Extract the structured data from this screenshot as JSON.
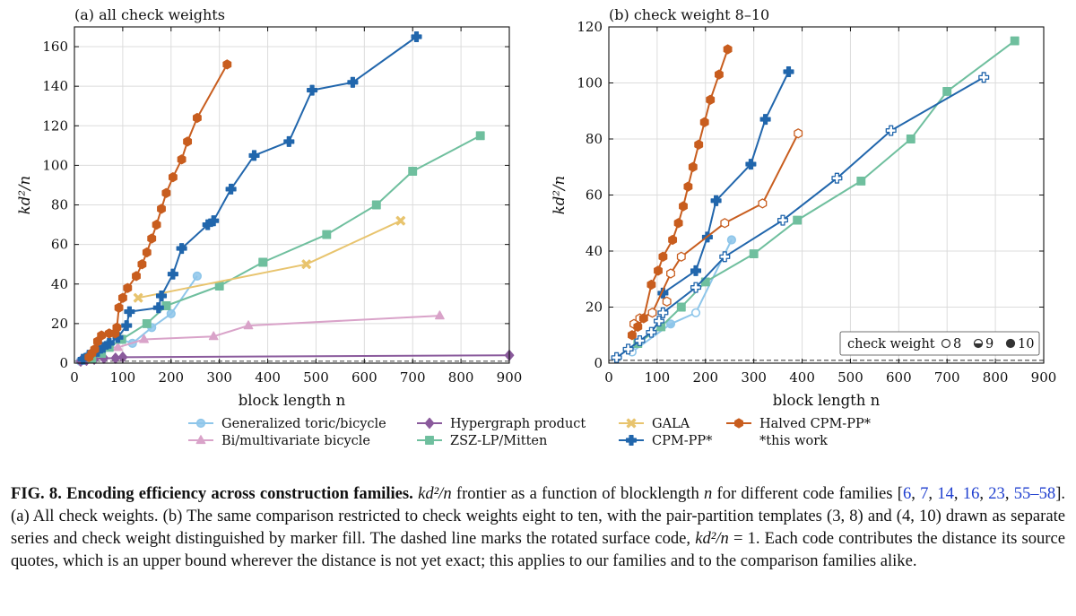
{
  "chart_data": [
    {
      "type": "line",
      "title": "(a) all check weights",
      "xlabel": "block length n",
      "ylabel": "kd²/n",
      "xlim": [
        0,
        900
      ],
      "ylim": [
        0,
        170
      ],
      "xticks": [
        0,
        100,
        200,
        300,
        400,
        500,
        600,
        700,
        800,
        900
      ],
      "yticks": [
        0,
        20,
        40,
        60,
        80,
        100,
        120,
        140,
        160
      ],
      "grid": true,
      "reference_line": {
        "y": 1,
        "style": "dashed"
      },
      "series": [
        {
          "name": "Generalized toric/bicycle",
          "color": "#8ec6ea",
          "marker": "circle",
          "points": [
            [
              12,
              1
            ],
            [
              18,
              2
            ],
            [
              24,
              3
            ],
            [
              30,
              4
            ],
            [
              36,
              5
            ],
            [
              48,
              6
            ],
            [
              60,
              8
            ],
            [
              72,
              10
            ],
            [
              96,
              12
            ],
            [
              120,
              10
            ],
            [
              160,
              18
            ],
            [
              200,
              25
            ],
            [
              254,
              44
            ]
          ]
        },
        {
          "name": "Bi/multivariate bicycle",
          "color": "#d9a3c9",
          "marker": "triangle",
          "points": [
            [
              72,
              8
            ],
            [
              90,
              8
            ],
            [
              144,
              12
            ],
            [
              288,
              13.5
            ],
            [
              360,
              19
            ],
            [
              756,
              24
            ]
          ]
        },
        {
          "name": "Hypergraph product",
          "color": "#8a5a9c",
          "marker": "diamond",
          "points": [
            [
              13,
              1
            ],
            [
              25,
              1.5
            ],
            [
              41,
              2
            ],
            [
              61,
              2.5
            ],
            [
              85,
              2.5
            ],
            [
              100,
              3
            ],
            [
              900,
              4
            ]
          ]
        },
        {
          "name": "ZSZ-LP/Mitten",
          "color": "#6fbf9e",
          "marker": "square",
          "points": [
            [
              36,
              2.5
            ],
            [
              56,
              5
            ],
            [
              72,
              8
            ],
            [
              98,
              12
            ],
            [
              150,
              20
            ],
            [
              190,
              29
            ],
            [
              300,
              39
            ],
            [
              390,
              51
            ],
            [
              522,
              65
            ],
            [
              625,
              80
            ],
            [
              700,
              97
            ],
            [
              840,
              115
            ]
          ]
        },
        {
          "name": "GALA",
          "color": "#e8c46e",
          "marker": "x",
          "points": [
            [
              132,
              33
            ],
            [
              480,
              50
            ],
            [
              675,
              72
            ]
          ]
        },
        {
          "name": "CPM-PP*",
          "color": "#2166ac",
          "marker": "plus",
          "points": [
            [
              18,
              2
            ],
            [
              30,
              4
            ],
            [
              48,
              6
            ],
            [
              60,
              8
            ],
            [
              72,
              10
            ],
            [
              90,
              13
            ],
            [
              108,
              19
            ],
            [
              114,
              26
            ],
            [
              174,
              28
            ],
            [
              180,
              34
            ],
            [
              204,
              45
            ],
            [
              222,
              58
            ],
            [
              276,
              70
            ],
            [
              288,
              72
            ],
            [
              324,
              88
            ],
            [
              372,
              105
            ],
            [
              444,
              112
            ],
            [
              492,
              138
            ],
            [
              576,
              142
            ],
            [
              708,
              165
            ]
          ]
        },
        {
          "name": "Halved CPM-PP*",
          "color": "#c85d1e",
          "marker": "hexagon",
          "points": [
            [
              30,
              3
            ],
            [
              36,
              5
            ],
            [
              42,
              7
            ],
            [
              48,
              11
            ],
            [
              56,
              14
            ],
            [
              72,
              15
            ],
            [
              84,
              15
            ],
            [
              88,
              18
            ],
            [
              92,
              28
            ],
            [
              100,
              33
            ],
            [
              110,
              38
            ],
            [
              128,
              44
            ],
            [
              140,
              50
            ],
            [
              150,
              56
            ],
            [
              160,
              63
            ],
            [
              170,
              70
            ],
            [
              180,
              78
            ],
            [
              190,
              86
            ],
            [
              204,
              94
            ],
            [
              222,
              103
            ],
            [
              234,
              112
            ],
            [
              254,
              124
            ],
            [
              316,
              151
            ]
          ]
        }
      ]
    },
    {
      "type": "line",
      "title": "(b) check weight 8–10",
      "xlabel": "block length n",
      "ylabel": "kd²/n",
      "xlim": [
        0,
        900
      ],
      "ylim": [
        0,
        120
      ],
      "xticks": [
        0,
        100,
        200,
        300,
        400,
        500,
        600,
        700,
        800,
        900
      ],
      "yticks": [
        0,
        20,
        40,
        60,
        80,
        100,
        120
      ],
      "grid": true,
      "reference_line": {
        "y": 1,
        "style": "dashed"
      },
      "fill_legend": {
        "label": "check weight",
        "items": [
          "8",
          "9",
          "10"
        ]
      },
      "series": [
        {
          "name": "Generalized toric/bicycle",
          "color": "#8ec6ea",
          "marker": "circle",
          "points": [
            [
              48,
              4,
              "open"
            ],
            [
              128,
              14,
              "half"
            ],
            [
              180,
              18,
              "open"
            ],
            [
              254,
              44,
              "full"
            ]
          ]
        },
        {
          "name": "ZSZ-LP/Mitten",
          "color": "#6fbf9e",
          "marker": "square",
          "points": [
            [
              60,
              7,
              "half"
            ],
            [
              108,
              13,
              "half"
            ],
            [
              150,
              20,
              "half"
            ],
            [
              200,
              29,
              "half"
            ],
            [
              300,
              39,
              "half"
            ],
            [
              390,
              51,
              "half"
            ],
            [
              522,
              65,
              "half"
            ],
            [
              625,
              80,
              "half"
            ],
            [
              700,
              97,
              "half"
            ],
            [
              840,
              115,
              "half"
            ]
          ]
        },
        {
          "name": "CPM-PP* (3,8)",
          "color": "#2166ac",
          "marker": "plus-open",
          "points": [
            [
              16,
              2,
              "open"
            ],
            [
              40,
              5,
              "open"
            ],
            [
              64,
              8,
              "open"
            ],
            [
              88,
              11,
              "open"
            ],
            [
              104,
              15,
              "open"
            ],
            [
              112,
              18,
              "open"
            ],
            [
              180,
              27,
              "open"
            ],
            [
              240,
              38,
              "open"
            ],
            [
              360,
              51,
              "open"
            ],
            [
              472,
              66,
              "open"
            ],
            [
              584,
              83,
              "open"
            ],
            [
              776,
              102,
              "open"
            ]
          ]
        },
        {
          "name": "CPM-PP* (4,10)",
          "color": "#2166ac",
          "marker": "plus",
          "points": [
            [
              112,
              25,
              "full"
            ],
            [
              180,
              33,
              "full"
            ],
            [
              204,
              45,
              "full"
            ],
            [
              222,
              58,
              "full"
            ],
            [
              294,
              71,
              "full"
            ],
            [
              324,
              87,
              "full"
            ],
            [
              372,
              104,
              "full"
            ]
          ]
        },
        {
          "name": "Halved CPM-PP* (3,8)",
          "color": "#c85d1e",
          "marker": "hexagon-open",
          "points": [
            [
              52,
              14,
              "open"
            ],
            [
              64,
              16,
              "open"
            ],
            [
              90,
              18,
              "open"
            ],
            [
              128,
              32,
              "open"
            ],
            [
              150,
              38,
              "open"
            ],
            [
              240,
              50,
              "open"
            ],
            [
              318,
              57,
              "open"
            ],
            [
              392,
              82,
              "open"
            ]
          ]
        },
        {
          "name": "Halved CPM-PP* (4,10)",
          "color": "#c85d1e",
          "marker": "hexagon",
          "points": [
            [
              48,
              10,
              "full"
            ],
            [
              60,
              13,
              "full"
            ],
            [
              72,
              16,
              "full"
            ],
            [
              88,
              28,
              "full"
            ],
            [
              102,
              33,
              "full"
            ],
            [
              112,
              38,
              "full"
            ],
            [
              132,
              44,
              "full"
            ],
            [
              144,
              50,
              "full"
            ],
            [
              154,
              56,
              "full"
            ],
            [
              164,
              63,
              "full"
            ],
            [
              174,
              70,
              "full"
            ],
            [
              186,
              78,
              "full"
            ],
            [
              198,
              86,
              "full"
            ],
            [
              210,
              94,
              "full"
            ],
            [
              228,
              103,
              "full"
            ],
            [
              246,
              112,
              "full"
            ],
            [
              120,
              22,
              "open"
            ]
          ]
        }
      ]
    }
  ],
  "legend": {
    "entries": [
      {
        "label": "Generalized toric/bicycle",
        "color": "#8ec6ea",
        "marker": "circle"
      },
      {
        "label": "Bi/multivariate bicycle",
        "color": "#d9a3c9",
        "marker": "triangle"
      },
      {
        "label": "Hypergraph product",
        "color": "#8a5a9c",
        "marker": "diamond"
      },
      {
        "label": "ZSZ-LP/Mitten",
        "color": "#6fbf9e",
        "marker": "square"
      },
      {
        "label": "GALA",
        "color": "#e8c46e",
        "marker": "x"
      },
      {
        "label": "CPM-PP*",
        "color": "#2166ac",
        "marker": "plus"
      },
      {
        "label": "Halved CPM-PP*",
        "color": "#c85d1e",
        "marker": "hexagon"
      }
    ],
    "note": "*this work"
  },
  "caption": {
    "label": "FIG. 8.",
    "title": "Encoding efficiency across construction families.",
    "p1": "frontier as a function of blocklength",
    "p2": "for different code families [",
    "refs": [
      "6",
      "7",
      "14",
      "16",
      "23",
      "55–58"
    ],
    "p3": "]. (a) All check weights. (b) The same comparison restricted to check weights eight to ten, with the pair-partition templates (3, 8) and (4, 10) drawn as separate series and check weight distinguished by marker fill. The dashed line marks the rotated surface code,",
    "p4": "= 1. Each code contributes the distance its source quotes, which is an upper bound wherever the distance is not yet exact; this applies to our families and to the comparison families alike.",
    "math_expr": "kd²/n",
    "math_n": "n"
  }
}
